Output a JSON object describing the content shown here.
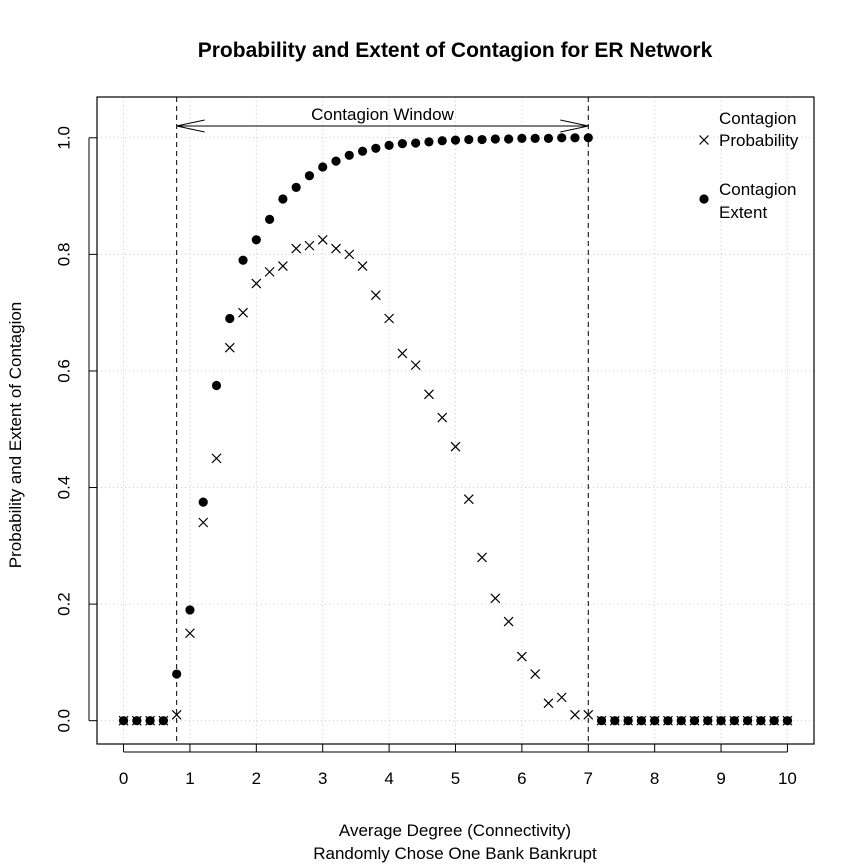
{
  "chart_data": {
    "type": "scatter",
    "title": "Probability and Extent of Contagion for ER Network",
    "xlabel": "Average Degree (Connectivity)",
    "xlabel_sub": "Randomly Chose One Bank Bankrupt",
    "ylabel": "Probability and Extent of Contagion",
    "xlim": [
      -0.4,
      10.4
    ],
    "ylim": [
      -0.04,
      1.07
    ],
    "x_ticks": [
      "0",
      "1",
      "2",
      "3",
      "4",
      "5",
      "6",
      "7",
      "8",
      "9",
      "10"
    ],
    "y_ticks": [
      "0.0",
      "0.2",
      "0.4",
      "0.6",
      "0.8",
      "1.0"
    ],
    "grid": true,
    "legend_position": "top-right",
    "annotation": {
      "label": "Contagion Window",
      "x_start": 0.8,
      "x_end": 7.0
    },
    "series": [
      {
        "name": "Contagion Probability",
        "marker": "x",
        "legend_lines": [
          "Contagion",
          "Probability"
        ],
        "x": [
          0.0,
          0.2,
          0.4,
          0.6,
          0.8,
          1.0,
          1.2,
          1.4,
          1.6,
          1.8,
          2.0,
          2.2,
          2.4,
          2.6,
          2.8,
          3.0,
          3.2,
          3.4,
          3.6,
          3.8,
          4.0,
          4.2,
          4.4,
          4.6,
          4.8,
          5.0,
          5.2,
          5.4,
          5.6,
          5.8,
          6.0,
          6.2,
          6.4,
          6.6,
          6.8,
          7.0,
          7.2,
          7.4,
          7.6,
          7.8,
          8.0,
          8.2,
          8.4,
          8.6,
          8.8,
          9.0,
          9.2,
          9.4,
          9.6,
          9.8,
          10.0
        ],
        "y": [
          0.0,
          0.0,
          0.0,
          0.0,
          0.01,
          0.15,
          0.34,
          0.45,
          0.64,
          0.7,
          0.75,
          0.77,
          0.78,
          0.81,
          0.815,
          0.825,
          0.81,
          0.8,
          0.78,
          0.73,
          0.69,
          0.63,
          0.61,
          0.56,
          0.52,
          0.47,
          0.38,
          0.28,
          0.21,
          0.17,
          0.11,
          0.08,
          0.03,
          0.04,
          0.01,
          0.01,
          0.0,
          0.0,
          0.0,
          0.0,
          0.0,
          0.0,
          0.0,
          0.0,
          0.0,
          0.0,
          0.0,
          0.0,
          0.0,
          0.0,
          0.0
        ]
      },
      {
        "name": "Contagion Extent",
        "marker": "dot",
        "legend_lines": [
          "Contagion",
          "Extent"
        ],
        "x": [
          0.0,
          0.2,
          0.4,
          0.6,
          0.8,
          1.0,
          1.2,
          1.4,
          1.6,
          1.8,
          2.0,
          2.2,
          2.4,
          2.6,
          2.8,
          3.0,
          3.2,
          3.4,
          3.6,
          3.8,
          4.0,
          4.2,
          4.4,
          4.6,
          4.8,
          5.0,
          5.2,
          5.4,
          5.6,
          5.8,
          6.0,
          6.2,
          6.4,
          6.6,
          6.8,
          7.0,
          7.2,
          7.4,
          7.6,
          7.8,
          8.0,
          8.2,
          8.4,
          8.6,
          8.8,
          9.0,
          9.2,
          9.4,
          9.6,
          9.8,
          10.0
        ],
        "y": [
          0.0,
          0.0,
          0.0,
          0.0,
          0.08,
          0.19,
          0.375,
          0.575,
          0.69,
          0.79,
          0.825,
          0.86,
          0.895,
          0.915,
          0.935,
          0.95,
          0.96,
          0.97,
          0.977,
          0.982,
          0.987,
          0.99,
          0.991,
          0.993,
          0.995,
          0.996,
          0.997,
          0.997,
          0.998,
          0.998,
          0.999,
          0.999,
          0.999,
          1.0,
          1.0,
          1.0,
          0.0,
          0.0,
          0.0,
          0.0,
          0.0,
          0.0,
          0.0,
          0.0,
          0.0,
          0.0,
          0.0,
          0.0,
          0.0,
          0.0,
          0.0
        ]
      }
    ]
  }
}
